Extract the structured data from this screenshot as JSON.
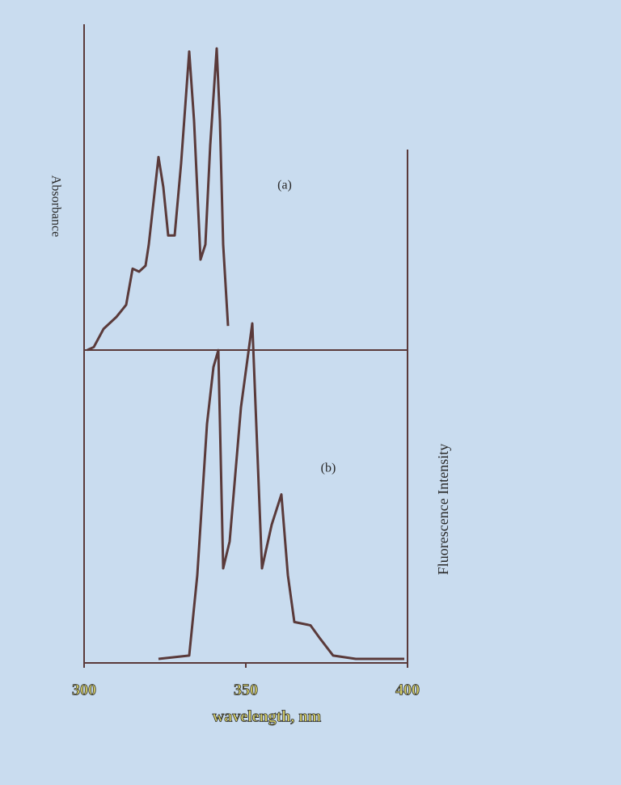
{
  "chart_data": [
    {
      "type": "line",
      "label": "(a)",
      "ylabel": "Absorbance",
      "color": "#5a3a3a",
      "x": [
        301,
        303,
        306,
        310,
        313,
        315,
        317,
        319,
        320,
        323,
        324.5,
        326,
        328,
        330,
        332.5,
        334,
        336,
        337.5,
        339,
        341,
        342,
        343,
        344.5
      ],
      "values": [
        0,
        0.01,
        0.07,
        0.11,
        0.15,
        0.27,
        0.26,
        0.28,
        0.35,
        0.64,
        0.54,
        0.38,
        0.38,
        0.62,
        0.99,
        0.76,
        0.3,
        0.35,
        0.68,
        1.0,
        0.76,
        0.35,
        0.08
      ],
      "xlim": [
        300,
        400
      ],
      "ylim": [
        0,
        1
      ]
    },
    {
      "type": "line",
      "label": "(b)",
      "ylabel": "Fluorescence Intensity",
      "xlabel": "wavelength, nm",
      "color": "#5a3a3a",
      "x": [
        323,
        332.5,
        335,
        338,
        340,
        341.5,
        343,
        345,
        348.5,
        352,
        355,
        358,
        361,
        363,
        365,
        370,
        373,
        377,
        384,
        399
      ],
      "values": [
        0,
        0.01,
        0.25,
        0.7,
        0.87,
        0.92,
        0.27,
        0.35,
        0.75,
        1.0,
        0.27,
        0.4,
        0.49,
        0.25,
        0.11,
        0.1,
        0.06,
        0.01,
        0,
        0
      ],
      "xlim": [
        300,
        400
      ],
      "ylim": [
        0,
        1
      ],
      "xticks": [
        300,
        350,
        400
      ]
    }
  ]
}
